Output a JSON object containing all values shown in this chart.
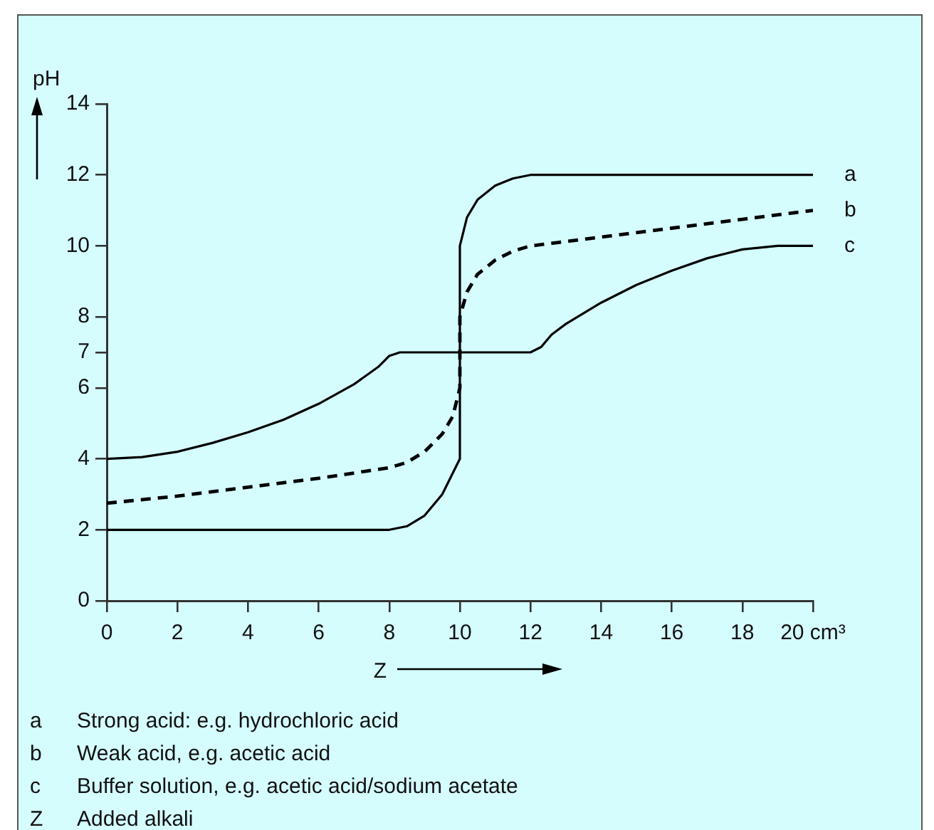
{
  "chart_data": {
    "type": "line",
    "xlabel": "Z",
    "ylabel": "pH",
    "xlim": [
      0,
      20
    ],
    "ylim": [
      0,
      14
    ],
    "xticks": [
      0,
      2,
      4,
      6,
      8,
      10,
      12,
      14,
      16,
      18,
      {
        "value": 20,
        "label": "20 cm³"
      }
    ],
    "yticks": [
      0,
      2,
      4,
      6,
      7,
      8,
      10,
      12,
      14
    ],
    "grid": false,
    "legend": false,
    "marker": "none",
    "series": [
      {
        "name": "a",
        "color": "#000000",
        "line_style": "solid",
        "x": [
          0,
          8,
          8.5,
          9,
          9.5,
          9.8,
          10,
          10,
          10.2,
          10.5,
          11,
          11.5,
          12,
          20
        ],
        "values": [
          2,
          2,
          2.1,
          2.4,
          3,
          3.6,
          4,
          10,
          10.8,
          11.3,
          11.7,
          11.9,
          12,
          12
        ]
      },
      {
        "name": "b",
        "color": "#000000",
        "line_style": "dashed",
        "x": [
          0,
          2,
          4,
          6,
          7,
          8,
          8.5,
          9,
          9.5,
          9.8,
          10,
          10,
          10.2,
          10.5,
          11,
          11.5,
          12,
          14,
          16,
          18,
          20
        ],
        "values": [
          2.75,
          2.95,
          3.2,
          3.45,
          3.6,
          3.75,
          3.9,
          4.2,
          4.7,
          5.2,
          6,
          8,
          8.7,
          9.2,
          9.6,
          9.85,
          10,
          10.25,
          10.5,
          10.75,
          11
        ]
      },
      {
        "name": "c",
        "color": "#000000",
        "line_style": "solid",
        "x": [
          0,
          1,
          2,
          3,
          4,
          5,
          6,
          7,
          7.7,
          8,
          8.3,
          12,
          12.3,
          12.6,
          13,
          14,
          15,
          16,
          17,
          18,
          19,
          20
        ],
        "values": [
          4,
          4.05,
          4.2,
          4.45,
          4.75,
          5.1,
          5.55,
          6.1,
          6.6,
          6.9,
          7,
          7,
          7.15,
          7.5,
          7.8,
          8.4,
          8.9,
          9.3,
          9.65,
          9.9,
          10,
          10
        ]
      }
    ],
    "annotations": [
      "a Strong acid: e.g. hydrochloric acid",
      "b Weak acid, e.g. acetic acid",
      "c Buffer solution, e.g. acetic acid/sodium acetate",
      "Z Added alkali"
    ]
  }
}
